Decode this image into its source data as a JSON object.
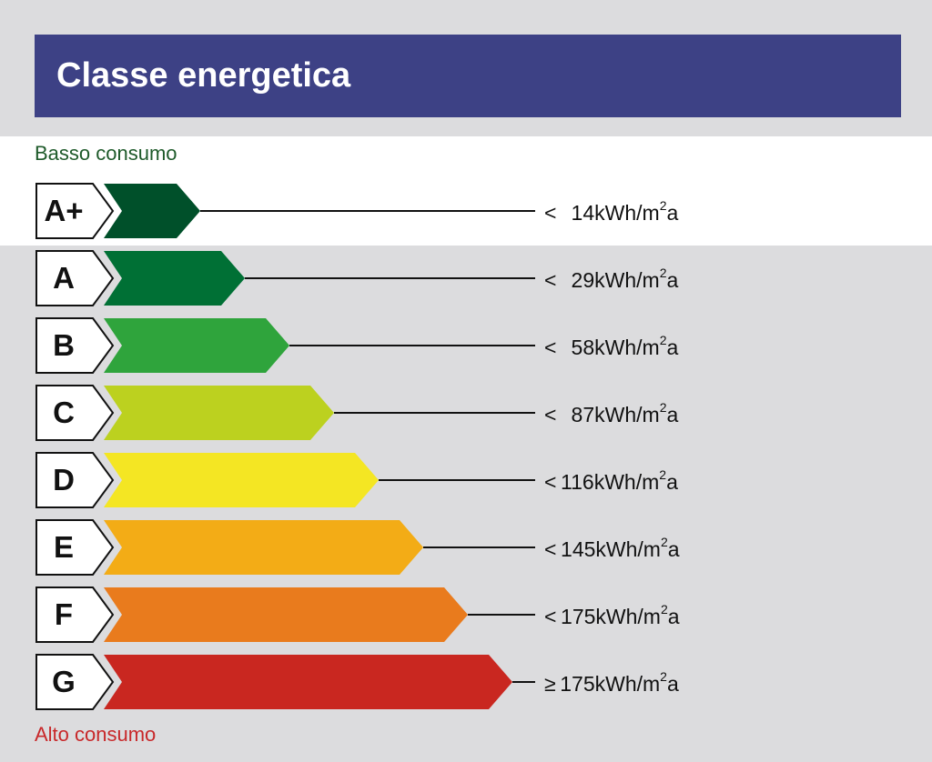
{
  "title": "Classe energetica",
  "low_label": "Basso consumo",
  "high_label": "Alto consumo",
  "colors": {
    "header_bg": "#3d4185",
    "low_label": "#1e5a2a",
    "high_label": "#c8282a"
  },
  "classes": [
    {
      "label": "A+",
      "operator": "<",
      "value": "14",
      "unit": "kWh/m",
      "sup": "2",
      "suffix": "a",
      "color": "#00502a"
    },
    {
      "label": "A",
      "operator": "<",
      "value": "29",
      "unit": "kWh/m",
      "sup": "2",
      "suffix": "a",
      "color": "#007035"
    },
    {
      "label": "B",
      "operator": "<",
      "value": "58",
      "unit": "kWh/m",
      "sup": "2",
      "suffix": "a",
      "color": "#2fa43c"
    },
    {
      "label": "C",
      "operator": "<",
      "value": "87",
      "unit": "kWh/m",
      "sup": "2",
      "suffix": "a",
      "color": "#bcd11f"
    },
    {
      "label": "D",
      "operator": "<",
      "value": "116",
      "unit": "kWh/m",
      "sup": "2",
      "suffix": "a",
      "color": "#f4e623"
    },
    {
      "label": "E",
      "operator": "<",
      "value": "145",
      "unit": "kWh/m",
      "sup": "2",
      "suffix": "a",
      "color": "#f3ac16"
    },
    {
      "label": "F",
      "operator": "<",
      "value": "175",
      "unit": "kWh/m",
      "sup": "2",
      "suffix": "a",
      "color": "#e97b1d"
    },
    {
      "label": "G",
      "operator": "≥",
      "value": "175",
      "unit": "kWh/m",
      "sup": "2",
      "suffix": "a",
      "color": "#c92720"
    }
  ]
}
